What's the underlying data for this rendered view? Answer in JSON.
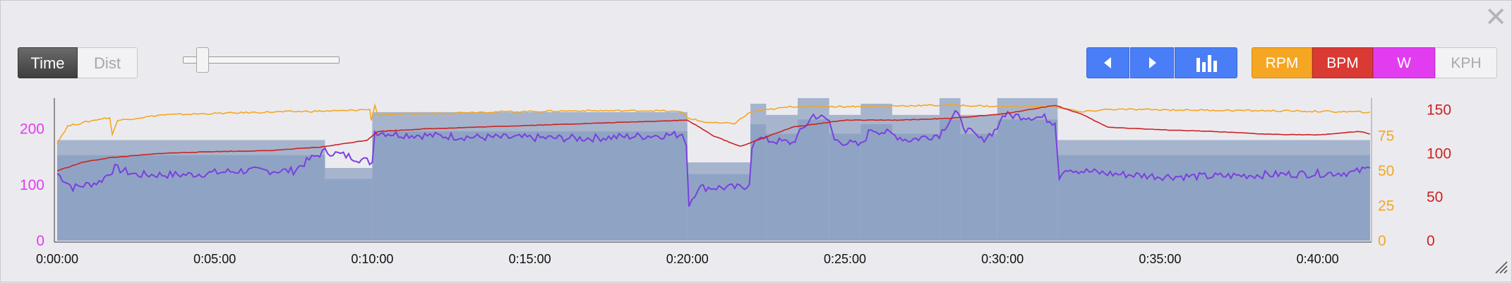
{
  "window": {
    "close_label": "✕"
  },
  "toolbar": {
    "mode_buttons": [
      "Time",
      "Dist"
    ],
    "selected_mode": "Time",
    "zoom_slider_value": 0.1,
    "nav_icons": [
      "chevron-left-icon",
      "chevron-right-icon",
      "bar-chart-icon"
    ],
    "metric_buttons": [
      {
        "label": "RPM",
        "color": "#f5a623"
      },
      {
        "label": "BPM",
        "color": "#d93a33"
      },
      {
        "label": "W",
        "color": "#e23cf0"
      },
      {
        "label": "KPH",
        "color": "#f2f2f4"
      }
    ]
  },
  "chart_data": {
    "type": "line",
    "x": {
      "range_seconds": [
        0,
        2500
      ],
      "ticks": [
        "0:00:00",
        "0:05:00",
        "0:10:00",
        "0:15:00",
        "0:20:00",
        "0:25:00",
        "0:30:00",
        "0:35:00",
        "0:40:00"
      ]
    },
    "axes": {
      "watts": {
        "ticks": [
          "0",
          "100",
          "200"
        ],
        "range": [
          0,
          250
        ],
        "color": "#e23cf0"
      },
      "rpm": {
        "ticks": [
          "0",
          "25",
          "50",
          "75"
        ],
        "range": [
          0,
          100
        ],
        "color": "#f5a623"
      },
      "bpm": {
        "ticks": [
          "0",
          "50",
          "100",
          "150"
        ],
        "range": [
          0,
          160
        ],
        "color": "#cc2222"
      }
    },
    "intervals": [
      {
        "start_s": 0,
        "end_s": 510,
        "watts": 180
      },
      {
        "start_s": 510,
        "end_s": 600,
        "watts": 130
      },
      {
        "start_s": 600,
        "end_s": 1200,
        "watts": 230
      },
      {
        "start_s": 1200,
        "end_s": 1320,
        "watts": 140
      },
      {
        "start_s": 1320,
        "end_s": 1350,
        "watts": 245
      },
      {
        "start_s": 1350,
        "end_s": 1410,
        "watts": 225
      },
      {
        "start_s": 1410,
        "end_s": 1470,
        "watts": 255
      },
      {
        "start_s": 1470,
        "end_s": 1530,
        "watts": 225
      },
      {
        "start_s": 1530,
        "end_s": 1590,
        "watts": 245
      },
      {
        "start_s": 1590,
        "end_s": 1680,
        "watts": 225
      },
      {
        "start_s": 1680,
        "end_s": 1720,
        "watts": 255
      },
      {
        "start_s": 1720,
        "end_s": 1790,
        "watts": 225
      },
      {
        "start_s": 1790,
        "end_s": 1905,
        "watts": 255
      },
      {
        "start_s": 1905,
        "end_s": 2500,
        "watts": 180
      }
    ],
    "series": [
      {
        "metric": "watts",
        "axis": "watts",
        "color": "#7b3fe0",
        "points": [
          [
            0,
            120
          ],
          [
            30,
            95
          ],
          [
            80,
            105
          ],
          [
            110,
            130
          ],
          [
            150,
            118
          ],
          [
            250,
            118
          ],
          [
            350,
            125
          ],
          [
            450,
            125
          ],
          [
            480,
            145
          ],
          [
            510,
            160
          ],
          [
            560,
            150
          ],
          [
            600,
            140
          ],
          [
            605,
            195
          ],
          [
            650,
            190
          ],
          [
            800,
            185
          ],
          [
            1000,
            183
          ],
          [
            1190,
            190
          ],
          [
            1198,
            170
          ],
          [
            1203,
            65
          ],
          [
            1220,
            95
          ],
          [
            1300,
            95
          ],
          [
            1318,
            100
          ],
          [
            1323,
            170
          ],
          [
            1340,
            185
          ],
          [
            1350,
            180
          ],
          [
            1400,
            175
          ],
          [
            1440,
            225
          ],
          [
            1470,
            215
          ],
          [
            1480,
            180
          ],
          [
            1530,
            170
          ],
          [
            1550,
            200
          ],
          [
            1590,
            190
          ],
          [
            1620,
            180
          ],
          [
            1680,
            190
          ],
          [
            1710,
            230
          ],
          [
            1730,
            200
          ],
          [
            1760,
            180
          ],
          [
            1790,
            200
          ],
          [
            1800,
            225
          ],
          [
            1880,
            220
          ],
          [
            1900,
            210
          ],
          [
            1908,
            110
          ],
          [
            1920,
            130
          ],
          [
            1950,
            125
          ],
          [
            2000,
            120
          ],
          [
            2100,
            115
          ],
          [
            2200,
            115
          ],
          [
            2300,
            118
          ],
          [
            2400,
            120
          ],
          [
            2470,
            122
          ],
          [
            2500,
            130
          ]
        ]
      },
      {
        "metric": "rpm",
        "axis": "rpm",
        "color": "#f5a623",
        "points": [
          [
            0,
            70
          ],
          [
            20,
            82
          ],
          [
            80,
            87
          ],
          [
            100,
            88
          ],
          [
            105,
            76
          ],
          [
            115,
            86
          ],
          [
            200,
            90
          ],
          [
            300,
            91
          ],
          [
            400,
            92
          ],
          [
            550,
            93
          ],
          [
            595,
            94
          ],
          [
            598,
            86
          ],
          [
            605,
            97
          ],
          [
            610,
            90
          ],
          [
            800,
            92
          ],
          [
            1000,
            93
          ],
          [
            1150,
            93
          ],
          [
            1190,
            92
          ],
          [
            1200,
            88
          ],
          [
            1230,
            85
          ],
          [
            1260,
            84
          ],
          [
            1290,
            84
          ],
          [
            1320,
            92
          ],
          [
            1400,
            96
          ],
          [
            1500,
            96
          ],
          [
            1700,
            97
          ],
          [
            1800,
            96
          ],
          [
            1900,
            96
          ],
          [
            1950,
            92
          ],
          [
            2000,
            94
          ],
          [
            2300,
            93
          ],
          [
            2500,
            92
          ]
        ]
      },
      {
        "metric": "bpm",
        "axis": "bpm",
        "color": "#cc2222",
        "points": [
          [
            0,
            80
          ],
          [
            50,
            90
          ],
          [
            100,
            95
          ],
          [
            200,
            100
          ],
          [
            300,
            102
          ],
          [
            400,
            103
          ],
          [
            500,
            107
          ],
          [
            590,
            115
          ],
          [
            610,
            125
          ],
          [
            700,
            128
          ],
          [
            800,
            130
          ],
          [
            900,
            132
          ],
          [
            1000,
            134
          ],
          [
            1100,
            136
          ],
          [
            1200,
            138
          ],
          [
            1250,
            120
          ],
          [
            1300,
            108
          ],
          [
            1320,
            112
          ],
          [
            1400,
            130
          ],
          [
            1500,
            138
          ],
          [
            1600,
            138
          ],
          [
            1700,
            140
          ],
          [
            1800,
            145
          ],
          [
            1900,
            155
          ],
          [
            1950,
            145
          ],
          [
            2000,
            130
          ],
          [
            2100,
            127
          ],
          [
            2200,
            125
          ],
          [
            2300,
            122
          ],
          [
            2400,
            121
          ],
          [
            2480,
            125
          ],
          [
            2500,
            122
          ]
        ]
      }
    ]
  }
}
